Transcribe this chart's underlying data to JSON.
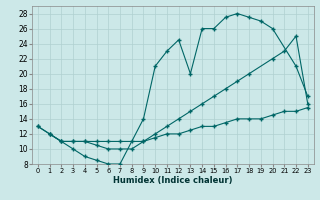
{
  "xlabel": "Humidex (Indice chaleur)",
  "bg_color": "#cce8e8",
  "grid_color": "#b0d0d0",
  "line_color": "#006666",
  "xlim": [
    -0.5,
    23.5
  ],
  "ylim": [
    8,
    29
  ],
  "xticks": [
    0,
    1,
    2,
    3,
    4,
    5,
    6,
    7,
    8,
    9,
    10,
    11,
    12,
    13,
    14,
    15,
    16,
    17,
    18,
    19,
    20,
    21,
    22,
    23
  ],
  "yticks": [
    8,
    10,
    12,
    14,
    16,
    18,
    20,
    22,
    24,
    26,
    28
  ],
  "line1_x": [
    0,
    1,
    2,
    3,
    4,
    5,
    6,
    7,
    9,
    10,
    11,
    12,
    13,
    14,
    15,
    16,
    17,
    18,
    19,
    20,
    22,
    23
  ],
  "line1_y": [
    13,
    12,
    11,
    10,
    9,
    8.5,
    8,
    8,
    14,
    21,
    23,
    24.5,
    20,
    26,
    26,
    27.5,
    28,
    27.5,
    27,
    26,
    21,
    17
  ],
  "line2_x": [
    0,
    1,
    2,
    3,
    4,
    5,
    6,
    7,
    8,
    9,
    10,
    11,
    12,
    13,
    14,
    15,
    16,
    17,
    18,
    20,
    21,
    22,
    23
  ],
  "line2_y": [
    13,
    12,
    11,
    11,
    11,
    10.5,
    10,
    10,
    10,
    11,
    12,
    13,
    14,
    15,
    16,
    17,
    18,
    19,
    20,
    22,
    23,
    25,
    16
  ],
  "line3_x": [
    1,
    2,
    3,
    4,
    5,
    6,
    7,
    8,
    9,
    10,
    11,
    12,
    13,
    14,
    15,
    16,
    17,
    18,
    19,
    20,
    21,
    22,
    23
  ],
  "line3_y": [
    12,
    11,
    11,
    11,
    11,
    11,
    11,
    11,
    11,
    11.5,
    12,
    12,
    12.5,
    13,
    13,
    13.5,
    14,
    14,
    14,
    14.5,
    15,
    15,
    15.5
  ]
}
